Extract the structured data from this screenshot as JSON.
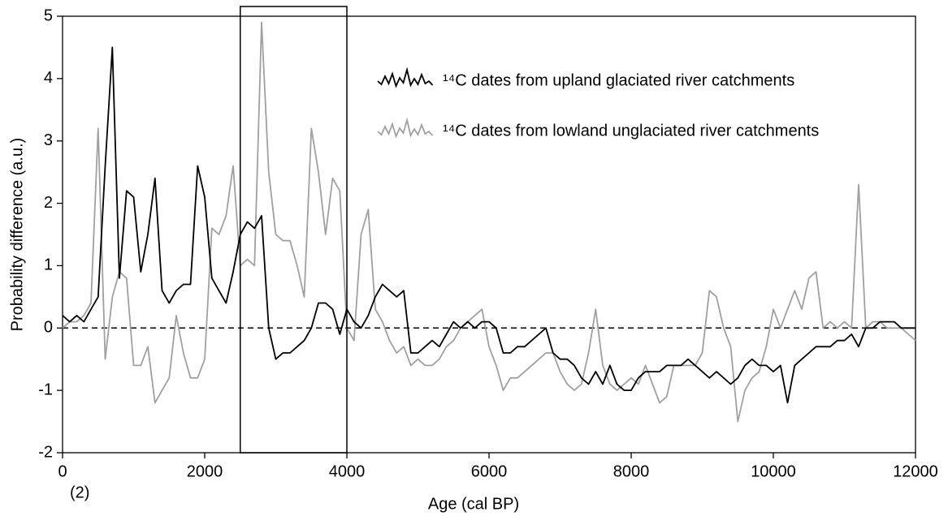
{
  "chart_data": {
    "type": "line",
    "xlabel": "Age (cal BP)",
    "ylabel": "Probability difference (a.u.)",
    "panel_label": "(2)",
    "xlim": [
      0,
      12000
    ],
    "xticks": [
      0,
      2000,
      4000,
      6000,
      8000,
      10000,
      12000
    ],
    "ylim": [
      -2,
      5
    ],
    "yticks": [
      -2,
      -1,
      0,
      1,
      2,
      3,
      4,
      5
    ],
    "reference_line": 0,
    "highlight_xrange": [
      2500,
      4000
    ],
    "legend": "upper center",
    "x": [
      0,
      100,
      200,
      300,
      400,
      500,
      600,
      700,
      800,
      900,
      1000,
      1100,
      1200,
      1300,
      1400,
      1500,
      1600,
      1700,
      1800,
      1900,
      2000,
      2100,
      2200,
      2300,
      2400,
      2500,
      2600,
      2700,
      2800,
      2900,
      3000,
      3100,
      3200,
      3300,
      3400,
      3500,
      3600,
      3700,
      3800,
      3900,
      4000,
      4100,
      4200,
      4300,
      4400,
      4500,
      4600,
      4700,
      4800,
      4900,
      5000,
      5100,
      5200,
      5300,
      5400,
      5500,
      5600,
      5700,
      5800,
      5900,
      6000,
      6100,
      6200,
      6300,
      6400,
      6500,
      6600,
      6700,
      6800,
      6900,
      7000,
      7100,
      7200,
      7300,
      7400,
      7500,
      7600,
      7700,
      7800,
      7900,
      8000,
      8100,
      8200,
      8300,
      8400,
      8500,
      8600,
      8700,
      8800,
      8900,
      9000,
      9100,
      9200,
      9300,
      9400,
      9500,
      9600,
      9700,
      9800,
      9900,
      10000,
      10100,
      10200,
      10300,
      10400,
      10500,
      10600,
      10700,
      10800,
      10900,
      11000,
      11100,
      11200,
      11300,
      11400,
      11500,
      11600,
      11700,
      11800,
      11900,
      12000
    ],
    "series": [
      {
        "name": "¹⁴C dates from upland glaciated river catchments",
        "color": "#000000",
        "values": [
          0.2,
          0.1,
          0.2,
          0.1,
          0.3,
          0.5,
          2.6,
          4.5,
          0.8,
          2.2,
          2.1,
          0.9,
          1.5,
          2.4,
          0.6,
          0.4,
          0.6,
          0.7,
          0.7,
          2.6,
          2.1,
          0.8,
          0.6,
          0.4,
          0.9,
          1.5,
          1.7,
          1.6,
          1.8,
          0.0,
          -0.5,
          -0.4,
          -0.4,
          -0.3,
          -0.2,
          0.0,
          0.4,
          0.4,
          0.3,
          -0.1,
          0.3,
          0.1,
          0.0,
          0.2,
          0.5,
          0.7,
          0.6,
          0.5,
          0.6,
          -0.4,
          -0.4,
          -0.3,
          -0.2,
          -0.3,
          -0.1,
          0.1,
          0.0,
          0.1,
          0.0,
          0.1,
          0.1,
          0.0,
          -0.4,
          -0.4,
          -0.3,
          -0.3,
          -0.2,
          -0.1,
          0.0,
          -0.4,
          -0.5,
          -0.5,
          -0.6,
          -0.8,
          -0.9,
          -0.7,
          -0.9,
          -0.6,
          -0.9,
          -1.0,
          -1.0,
          -0.8,
          -0.7,
          -0.7,
          -0.7,
          -0.6,
          -0.6,
          -0.6,
          -0.5,
          -0.6,
          -0.7,
          -0.8,
          -0.7,
          -0.8,
          -0.9,
          -0.8,
          -0.6,
          -0.5,
          -0.6,
          -0.6,
          -0.7,
          -0.6,
          -1.2,
          -0.6,
          -0.5,
          -0.4,
          -0.3,
          -0.3,
          -0.3,
          -0.2,
          -0.2,
          -0.1,
          -0.3,
          0.0,
          0.0,
          0.1,
          0.1,
          0.1,
          0.0,
          0.0,
          0.0
        ]
      },
      {
        "name": "¹⁴C dates from lowland unglaciated river catchments",
        "color": "#a0a0a0",
        "values": [
          0.0,
          0.1,
          0.1,
          0.2,
          0.4,
          3.2,
          -0.5,
          0.5,
          0.9,
          0.8,
          -0.6,
          -0.6,
          -0.3,
          -1.2,
          -1.0,
          -0.8,
          0.2,
          -0.4,
          -0.8,
          -0.8,
          -0.5,
          1.6,
          1.5,
          1.8,
          2.6,
          1.0,
          1.1,
          1.0,
          4.9,
          2.5,
          1.5,
          1.4,
          1.4,
          1.0,
          0.5,
          3.2,
          2.5,
          1.5,
          2.4,
          2.2,
          0.0,
          -0.2,
          1.5,
          1.9,
          0.3,
          0.1,
          -0.2,
          -0.4,
          -0.3,
          -0.6,
          -0.5,
          -0.6,
          -0.6,
          -0.5,
          -0.3,
          -0.2,
          0.0,
          0.1,
          0.2,
          0.3,
          -0.3,
          -0.6,
          -1.0,
          -0.8,
          -0.8,
          -0.7,
          -0.6,
          -0.5,
          -0.4,
          -0.4,
          -0.7,
          -0.9,
          -1.0,
          -0.9,
          -0.4,
          0.3,
          -0.6,
          -0.9,
          -1.0,
          -0.9,
          -0.8,
          -0.9,
          -0.6,
          -0.9,
          -1.2,
          -1.1,
          -0.6,
          -0.6,
          -0.6,
          -0.6,
          -0.4,
          0.6,
          0.5,
          0.0,
          -0.3,
          -1.5,
          -1.0,
          -0.8,
          -0.7,
          -0.3,
          0.3,
          0.0,
          0.3,
          0.6,
          0.3,
          0.8,
          0.9,
          0.0,
          0.1,
          0.0,
          0.1,
          0.0,
          2.3,
          0.0,
          0.1,
          0.1,
          0.0,
          0.0,
          0.0,
          -0.1,
          -0.2
        ]
      }
    ]
  }
}
